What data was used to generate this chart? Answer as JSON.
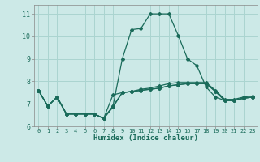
{
  "xlabel": "Humidex (Indice chaleur)",
  "bg_color": "#cce9e7",
  "line_color": "#1a6b5a",
  "grid_color": "#aad4d0",
  "xlim": [
    -0.5,
    23.5
  ],
  "ylim": [
    6.0,
    11.4
  ],
  "x_ticks": [
    0,
    1,
    2,
    3,
    4,
    5,
    6,
    7,
    8,
    9,
    10,
    11,
    12,
    13,
    14,
    15,
    16,
    17,
    18,
    19,
    20,
    21,
    22,
    23
  ],
  "y_ticks": [
    6,
    7,
    8,
    9,
    10,
    11
  ],
  "series": [
    [
      7.6,
      6.9,
      7.3,
      6.55,
      6.55,
      6.55,
      6.55,
      6.35,
      6.85,
      7.5,
      7.55,
      7.6,
      7.65,
      7.7,
      7.8,
      7.85,
      7.9,
      7.9,
      7.9,
      7.55,
      7.15,
      7.15,
      7.25,
      7.3
    ],
    [
      7.6,
      6.9,
      7.3,
      6.55,
      6.55,
      6.55,
      6.55,
      6.35,
      6.9,
      7.5,
      7.55,
      7.65,
      7.7,
      7.8,
      7.9,
      7.95,
      7.95,
      7.95,
      7.95,
      7.6,
      7.2,
      7.2,
      7.3,
      7.35
    ],
    [
      7.6,
      6.9,
      7.3,
      6.55,
      6.55,
      6.55,
      6.55,
      6.35,
      6.9,
      9.0,
      10.3,
      10.35,
      11.0,
      11.0,
      11.0,
      10.05,
      9.0,
      8.7,
      7.75,
      7.3,
      7.15,
      7.15,
      7.25,
      7.3
    ],
    [
      7.6,
      6.9,
      7.3,
      6.55,
      6.55,
      6.55,
      6.55,
      6.35,
      7.4,
      7.5,
      7.55,
      7.6,
      7.65,
      7.7,
      7.8,
      7.85,
      7.9,
      7.9,
      7.9,
      7.55,
      7.15,
      7.15,
      7.25,
      7.3
    ]
  ]
}
